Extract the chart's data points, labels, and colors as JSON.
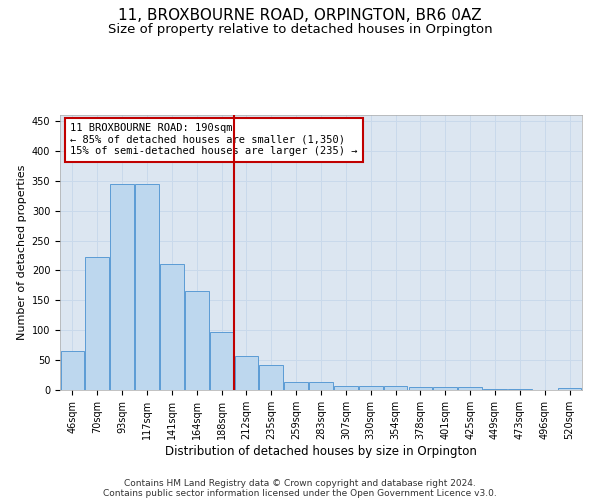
{
  "title": "11, BROXBOURNE ROAD, ORPINGTON, BR6 0AZ",
  "subtitle": "Size of property relative to detached houses in Orpington",
  "xlabel": "Distribution of detached houses by size in Orpington",
  "ylabel": "Number of detached properties",
  "bar_labels": [
    "46sqm",
    "70sqm",
    "93sqm",
    "117sqm",
    "141sqm",
    "164sqm",
    "188sqm",
    "212sqm",
    "235sqm",
    "259sqm",
    "283sqm",
    "307sqm",
    "330sqm",
    "354sqm",
    "378sqm",
    "401sqm",
    "425sqm",
    "449sqm",
    "473sqm",
    "496sqm",
    "520sqm"
  ],
  "bar_values": [
    65,
    222,
    344,
    344,
    210,
    165,
    97,
    57,
    42,
    14,
    14,
    7,
    7,
    7,
    5,
    5,
    5,
    2,
    2,
    0,
    3
  ],
  "bar_color": "#bdd7ee",
  "bar_edge_color": "#5b9bd5",
  "grid_color": "#c9d9eb",
  "background_color": "#dce6f1",
  "vline_x_index": 6,
  "vline_color": "#c00000",
  "annotation_text": "11 BROXBOURNE ROAD: 190sqm\n← 85% of detached houses are smaller (1,350)\n15% of semi-detached houses are larger (235) →",
  "annotation_box_color": "#c00000",
  "ylim": [
    0,
    460
  ],
  "yticks": [
    0,
    50,
    100,
    150,
    200,
    250,
    300,
    350,
    400,
    450
  ],
  "footnote1": "Contains HM Land Registry data © Crown copyright and database right 2024.",
  "footnote2": "Contains public sector information licensed under the Open Government Licence v3.0.",
  "title_fontsize": 11,
  "subtitle_fontsize": 9.5,
  "xlabel_fontsize": 8.5,
  "ylabel_fontsize": 8,
  "tick_fontsize": 7,
  "annotation_fontsize": 7.5,
  "footnote_fontsize": 6.5
}
